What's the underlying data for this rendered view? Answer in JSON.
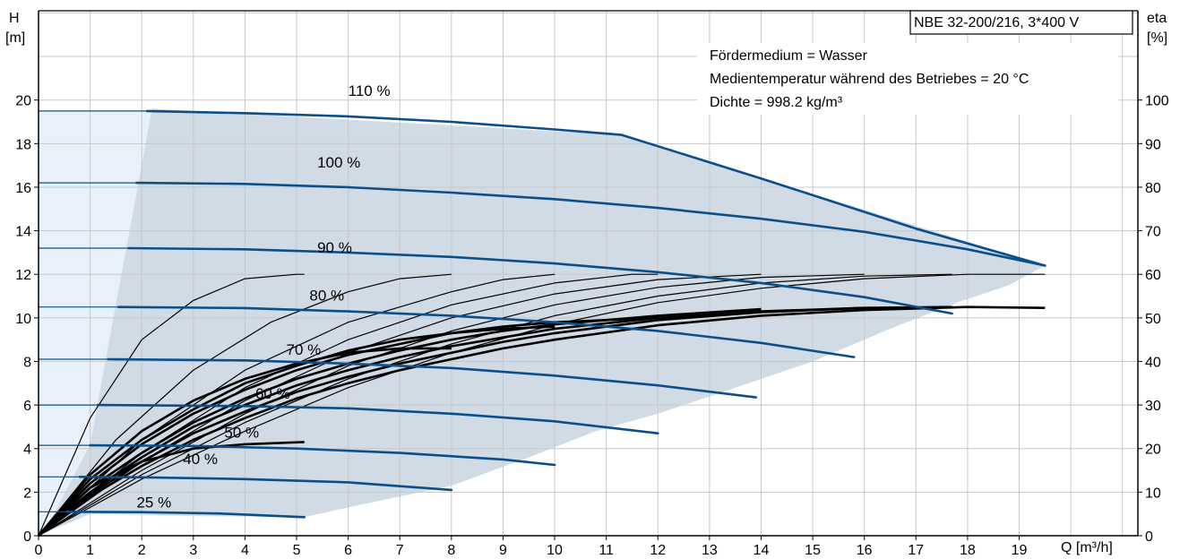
{
  "chart_data": {
    "type": "line",
    "model": "NBE 32-200/216, 3*400 V",
    "info_lines": [
      "Fördermedium = Wasser",
      "Medientemperatur während des Betriebes = 20 °C",
      "Dichte = 998.2 kg/m³"
    ],
    "x_axis": {
      "label": "Q [m³/h]",
      "min": 0,
      "max": 21.3,
      "ticks": [
        0,
        1,
        2,
        3,
        4,
        5,
        6,
        7,
        8,
        9,
        10,
        11,
        12,
        13,
        14,
        15,
        16,
        17,
        18,
        19
      ]
    },
    "y_left": {
      "label_top": "H",
      "label_unit": "[m]",
      "min": 0,
      "max": 24.1,
      "ticks": [
        0,
        2,
        4,
        6,
        8,
        10,
        12,
        14,
        16,
        18,
        20
      ]
    },
    "y_right": {
      "label_top": "eta",
      "label_unit": "[%]",
      "min": 0,
      "max": 120.5,
      "ticks": [
        0,
        10,
        20,
        30,
        40,
        50,
        60,
        70,
        80,
        90,
        100
      ]
    },
    "grid": true,
    "colors": {
      "pump_curve": "#0b4f8a",
      "operating_area": "#d0dbe6",
      "low_flow_area": "#e8f1fa",
      "efficiency": "#000000"
    },
    "operating_area": [
      [
        0.1,
        0.1
      ],
      [
        1,
        4.2
      ],
      [
        2.2,
        19.6
      ],
      [
        11.3,
        18.4
      ],
      [
        19.5,
        12.4
      ],
      [
        18.8,
        11.5
      ],
      [
        17.8,
        10.7
      ],
      [
        16.5,
        9.5
      ],
      [
        15,
        8.0
      ],
      [
        13.5,
        6.8
      ],
      [
        12,
        5.6
      ],
      [
        10.8,
        4.8
      ],
      [
        9.5,
        3.6
      ],
      [
        8,
        2.3
      ],
      [
        7,
        1.8
      ],
      [
        6,
        1.3
      ],
      [
        5.15,
        0.85
      ],
      [
        3,
        0.9
      ],
      [
        1,
        1.0
      ],
      [
        0.1,
        0.1
      ]
    ],
    "low_flow_area": [
      [
        0,
        0
      ],
      [
        0,
        19.5
      ],
      [
        2.2,
        19.5
      ],
      [
        1,
        4.2
      ],
      [
        0.1,
        0.1
      ]
    ],
    "pump_curves": [
      {
        "name": "110 %",
        "label_at": [
          6.0,
          20.2
        ],
        "faint": [
          [
            0,
            19.5
          ],
          [
            2.1,
            19.5
          ]
        ],
        "points": [
          [
            2.1,
            19.5
          ],
          [
            4,
            19.4
          ],
          [
            6,
            19.25
          ],
          [
            8,
            19.0
          ],
          [
            10,
            18.65
          ],
          [
            11.3,
            18.4
          ],
          [
            14,
            16.4
          ],
          [
            17,
            14.1
          ],
          [
            19.5,
            12.4
          ]
        ]
      },
      {
        "name": "100 %",
        "label_at": [
          5.4,
          16.9
        ],
        "faint": [
          [
            0,
            16.2
          ],
          [
            1.9,
            16.2
          ]
        ],
        "points": [
          [
            1.9,
            16.2
          ],
          [
            4,
            16.15
          ],
          [
            6,
            16.0
          ],
          [
            8,
            15.75
          ],
          [
            10,
            15.45
          ],
          [
            12,
            15.05
          ],
          [
            14,
            14.55
          ],
          [
            16,
            13.95
          ],
          [
            18,
            13.15
          ],
          [
            19.5,
            12.4
          ]
        ]
      },
      {
        "name": "90 %",
        "label_at": [
          5.4,
          13.0
        ],
        "faint": [
          [
            0,
            13.2
          ],
          [
            1.75,
            13.2
          ]
        ],
        "points": [
          [
            1.75,
            13.2
          ],
          [
            4,
            13.15
          ],
          [
            6,
            13.0
          ],
          [
            8,
            12.8
          ],
          [
            10,
            12.5
          ],
          [
            12,
            12.1
          ],
          [
            14,
            11.6
          ],
          [
            16,
            10.95
          ],
          [
            17.7,
            10.2
          ]
        ]
      },
      {
        "name": "80 %",
        "label_at": [
          5.25,
          10.8
        ],
        "faint": [
          [
            0,
            10.5
          ],
          [
            1.55,
            10.5
          ]
        ],
        "points": [
          [
            1.55,
            10.5
          ],
          [
            4,
            10.45
          ],
          [
            6,
            10.3
          ],
          [
            8,
            10.1
          ],
          [
            10,
            9.8
          ],
          [
            12,
            9.4
          ],
          [
            14,
            8.85
          ],
          [
            15.8,
            8.2
          ]
        ]
      },
      {
        "name": "70 %",
        "label_at": [
          4.8,
          8.3
        ],
        "faint": [
          [
            0,
            8.1
          ],
          [
            1.35,
            8.1
          ]
        ],
        "points": [
          [
            1.35,
            8.1
          ],
          [
            4,
            8.05
          ],
          [
            6,
            7.9
          ],
          [
            8,
            7.7
          ],
          [
            10,
            7.35
          ],
          [
            12,
            6.9
          ],
          [
            13.9,
            6.35
          ]
        ]
      },
      {
        "name": "60 %",
        "label_at": [
          4.2,
          6.3
        ],
        "faint": [
          [
            0,
            6.0
          ],
          [
            1.15,
            6.0
          ]
        ],
        "points": [
          [
            1.15,
            6.0
          ],
          [
            4,
            5.95
          ],
          [
            6,
            5.85
          ],
          [
            8,
            5.6
          ],
          [
            10,
            5.25
          ],
          [
            12,
            4.7
          ]
        ]
      },
      {
        "name": "50 %",
        "label_at": [
          3.6,
          4.5
        ],
        "faint": [
          [
            0,
            4.15
          ],
          [
            1.0,
            4.15
          ]
        ],
        "points": [
          [
            1.0,
            4.15
          ],
          [
            3,
            4.12
          ],
          [
            5,
            4.0
          ],
          [
            7,
            3.8
          ],
          [
            9,
            3.5
          ],
          [
            10,
            3.25
          ]
        ]
      },
      {
        "name": "40 %",
        "label_at": [
          2.8,
          3.3
        ],
        "faint": [
          [
            0,
            2.7
          ],
          [
            0.8,
            2.7
          ]
        ],
        "points": [
          [
            0.8,
            2.7
          ],
          [
            2,
            2.68
          ],
          [
            4,
            2.6
          ],
          [
            6,
            2.45
          ],
          [
            8,
            2.1
          ]
        ]
      },
      {
        "name": "25 %",
        "label_at": [
          1.9,
          1.3
        ],
        "faint": [
          [
            0,
            1.1
          ],
          [
            0.55,
            1.1
          ]
        ],
        "points": [
          [
            0.55,
            1.1
          ],
          [
            2,
            1.08
          ],
          [
            3.5,
            1.02
          ],
          [
            5.15,
            0.85
          ]
        ]
      }
    ],
    "efficiency_curves": [
      {
        "points": [
          [
            0,
            0
          ],
          [
            1,
            27
          ],
          [
            2,
            45
          ],
          [
            3,
            54
          ],
          [
            4,
            59
          ],
          [
            5,
            60
          ],
          [
            5.15,
            60
          ]
        ],
        "width": 1.2
      },
      {
        "points": [
          [
            0,
            0
          ],
          [
            1.5,
            22
          ],
          [
            3,
            38
          ],
          [
            4.5,
            49
          ],
          [
            6,
            56
          ],
          [
            7,
            59
          ],
          [
            8,
            60
          ]
        ],
        "width": 1.2
      },
      {
        "points": [
          [
            0,
            0
          ],
          [
            2,
            22
          ],
          [
            4,
            38
          ],
          [
            6,
            49
          ],
          [
            8,
            56
          ],
          [
            9,
            58.8
          ],
          [
            10,
            60
          ]
        ],
        "width": 1.2
      },
      {
        "points": [
          [
            0,
            0
          ],
          [
            2,
            19
          ],
          [
            4,
            34
          ],
          [
            6,
            45
          ],
          [
            8,
            53
          ],
          [
            10,
            58
          ],
          [
            11.5,
            60
          ],
          [
            12,
            60
          ]
        ],
        "width": 1.2
      },
      {
        "points": [
          [
            0,
            0
          ],
          [
            2,
            17
          ],
          [
            4,
            31
          ],
          [
            6,
            42
          ],
          [
            8,
            50
          ],
          [
            10,
            55.5
          ],
          [
            12,
            58.8
          ],
          [
            14,
            60
          ]
        ],
        "width": 1.2
      },
      {
        "points": [
          [
            0,
            0
          ],
          [
            2,
            15
          ],
          [
            4,
            28
          ],
          [
            6,
            39
          ],
          [
            8,
            47
          ],
          [
            10,
            53
          ],
          [
            12,
            57
          ],
          [
            14,
            59.3
          ],
          [
            16,
            60
          ]
        ],
        "width": 1.2
      },
      {
        "points": [
          [
            0,
            0
          ],
          [
            2,
            14
          ],
          [
            4,
            26
          ],
          [
            6,
            36
          ],
          [
            8,
            44
          ],
          [
            10,
            50.5
          ],
          [
            12,
            55
          ],
          [
            14,
            58
          ],
          [
            16,
            59.6
          ],
          [
            17.7,
            60
          ]
        ],
        "width": 1.2
      },
      {
        "points": [
          [
            0,
            0
          ],
          [
            2,
            13
          ],
          [
            4,
            24
          ],
          [
            6,
            34
          ],
          [
            8,
            42
          ],
          [
            10,
            48.5
          ],
          [
            12,
            53.5
          ],
          [
            14,
            56.8
          ],
          [
            16,
            59
          ],
          [
            18,
            60
          ],
          [
            19.5,
            60
          ]
        ],
        "width": 1.2
      },
      {
        "points": [
          [
            0,
            0
          ],
          [
            1,
            11
          ],
          [
            2,
            17
          ],
          [
            3,
            20
          ],
          [
            4,
            21
          ],
          [
            5.15,
            21.5
          ]
        ],
        "width": 2.6
      },
      {
        "points": [
          [
            0,
            0
          ],
          [
            1,
            14
          ],
          [
            2,
            24
          ],
          [
            3,
            31
          ],
          [
            4,
            36
          ],
          [
            5,
            39.5
          ],
          [
            6,
            42
          ],
          [
            7,
            43
          ],
          [
            8,
            43
          ]
        ],
        "width": 2.6
      },
      {
        "points": [
          [
            0,
            0
          ],
          [
            1,
            13
          ],
          [
            2,
            22
          ],
          [
            3,
            29
          ],
          [
            4,
            35
          ],
          [
            5,
            39
          ],
          [
            6,
            42.5
          ],
          [
            7,
            45
          ],
          [
            8,
            46.5
          ],
          [
            9,
            47.5
          ],
          [
            10,
            48
          ]
        ],
        "width": 2.6
      },
      {
        "points": [
          [
            0,
            0
          ],
          [
            1,
            12
          ],
          [
            2,
            21
          ],
          [
            3,
            28
          ],
          [
            4,
            33.5
          ],
          [
            5,
            38
          ],
          [
            6,
            41.5
          ],
          [
            7,
            44
          ],
          [
            8,
            46.5
          ],
          [
            9,
            48
          ],
          [
            10,
            49
          ],
          [
            12,
            50
          ]
        ],
        "width": 2.6
      },
      {
        "points": [
          [
            0,
            0
          ],
          [
            1,
            11
          ],
          [
            2,
            19
          ],
          [
            3,
            26
          ],
          [
            4,
            31.5
          ],
          [
            5,
            36
          ],
          [
            6,
            39.5
          ],
          [
            7,
            42.5
          ],
          [
            8,
            45
          ],
          [
            9,
            47
          ],
          [
            10,
            48.5
          ],
          [
            12,
            50.5
          ],
          [
            14,
            52
          ]
        ],
        "width": 2.6
      },
      {
        "points": [
          [
            0,
            0
          ],
          [
            1,
            10
          ],
          [
            2,
            18
          ],
          [
            3,
            25
          ],
          [
            4,
            30
          ],
          [
            5,
            34.5
          ],
          [
            6,
            38
          ],
          [
            7,
            41
          ],
          [
            8,
            43.5
          ],
          [
            9,
            45.5
          ],
          [
            10,
            47.5
          ],
          [
            12,
            50
          ],
          [
            14,
            51.5
          ],
          [
            16,
            52.3
          ]
        ],
        "width": 2.6
      },
      {
        "points": [
          [
            0,
            0
          ],
          [
            1,
            9.5
          ],
          [
            2,
            17
          ],
          [
            3,
            23.5
          ],
          [
            4,
            28.5
          ],
          [
            5,
            33
          ],
          [
            6,
            36.5
          ],
          [
            7,
            39.5
          ],
          [
            8,
            42
          ],
          [
            9,
            44.5
          ],
          [
            10,
            46.5
          ],
          [
            12,
            49.5
          ],
          [
            14,
            51.3
          ],
          [
            16,
            52.3
          ],
          [
            17.7,
            52.5
          ]
        ],
        "width": 2.6
      },
      {
        "points": [
          [
            0,
            0
          ],
          [
            1,
            9
          ],
          [
            2,
            16
          ],
          [
            3,
            22
          ],
          [
            4,
            27
          ],
          [
            5,
            31.5
          ],
          [
            6,
            35
          ],
          [
            7,
            38
          ],
          [
            8,
            40.5
          ],
          [
            9,
            43
          ],
          [
            10,
            45
          ],
          [
            12,
            48.3
          ],
          [
            14,
            50.5
          ],
          [
            16,
            51.8
          ],
          [
            18,
            52.5
          ],
          [
            19.5,
            52.3
          ]
        ],
        "width": 2.6
      }
    ]
  }
}
